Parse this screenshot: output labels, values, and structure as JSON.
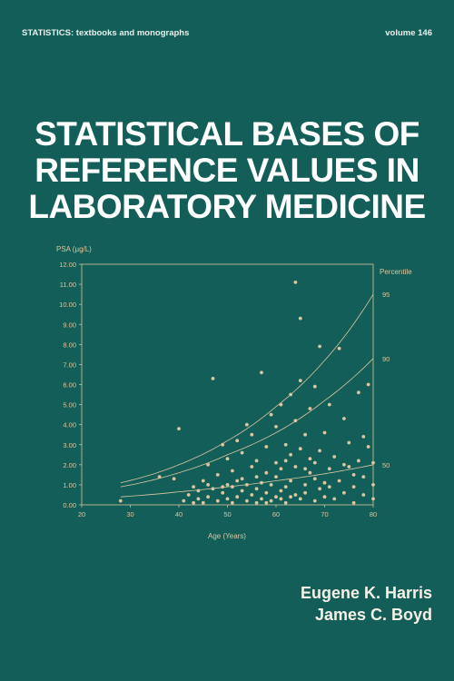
{
  "header": {
    "series": "STATISTICS: textbooks and monographs",
    "volume": "volume 146"
  },
  "title_lines": [
    "STATISTICAL BASES OF",
    "REFERENCE VALUES IN",
    "LABORATORY MEDICINE"
  ],
  "authors": [
    "Eugene K. Harris",
    "James C. Boyd"
  ],
  "colors": {
    "background": "#135e58",
    "plot_ink": "#d9c7a1",
    "title": "#ffffff"
  },
  "chart_data": {
    "type": "scatter",
    "ylabel": "PSA (µg/L)",
    "xlabel": "Age (Years)",
    "right_axis_title": "Percentile",
    "xlim": [
      20,
      80
    ],
    "ylim": [
      0,
      12
    ],
    "xticks": [
      "20",
      "30",
      "40",
      "50",
      "60",
      "70",
      "80"
    ],
    "yticks": [
      "0.00",
      "1.00",
      "2.00",
      "3.00",
      "4.00",
      "5.00",
      "6.00",
      "7.00",
      "8.00",
      "9.00",
      "10.00",
      "11.00",
      "12.00"
    ],
    "percentile_curves": [
      {
        "label": "95",
        "x": [
          28,
          40,
          50,
          60,
          70,
          80
        ],
        "y": [
          1.1,
          2.0,
          3.2,
          4.9,
          7.2,
          10.5
        ]
      },
      {
        "label": "90",
        "x": [
          28,
          40,
          50,
          60,
          70,
          80
        ],
        "y": [
          0.9,
          1.6,
          2.5,
          3.6,
          5.2,
          7.3
        ]
      },
      {
        "label": "50",
        "x": [
          28,
          40,
          50,
          60,
          70,
          80
        ],
        "y": [
          0.4,
          0.65,
          0.9,
          1.2,
          1.55,
          2.0
        ]
      }
    ],
    "points": [
      [
        28,
        0.2
      ],
      [
        36,
        1.4
      ],
      [
        39,
        1.3
      ],
      [
        40,
        3.8
      ],
      [
        41,
        0.2
      ],
      [
        42,
        0.5
      ],
      [
        43,
        0.9
      ],
      [
        44,
        0.3
      ],
      [
        44,
        0.7
      ],
      [
        45,
        1.2
      ],
      [
        45,
        0.1
      ],
      [
        46,
        0.4
      ],
      [
        46,
        2.0
      ],
      [
        47,
        6.3
      ],
      [
        47,
        0.8
      ],
      [
        48,
        0.2
      ],
      [
        48,
        1.5
      ],
      [
        49,
        3.0
      ],
      [
        49,
        0.6
      ],
      [
        50,
        0.3
      ],
      [
        50,
        1.0
      ],
      [
        50,
        2.3
      ],
      [
        51,
        0.1
      ],
      [
        51,
        0.9
      ],
      [
        51,
        1.7
      ],
      [
        52,
        3.2
      ],
      [
        52,
        0.4
      ],
      [
        53,
        0.7
      ],
      [
        53,
        1.3
      ],
      [
        53,
        2.6
      ],
      [
        54,
        4.0
      ],
      [
        54,
        0.2
      ],
      [
        54,
        1.0
      ],
      [
        55,
        0.5
      ],
      [
        55,
        1.9
      ],
      [
        55,
        3.5
      ],
      [
        56,
        0.8
      ],
      [
        56,
        0.1
      ],
      [
        56,
        2.2
      ],
      [
        57,
        6.6
      ],
      [
        57,
        1.1
      ],
      [
        57,
        0.3
      ],
      [
        58,
        0.6
      ],
      [
        58,
        1.6
      ],
      [
        58,
        2.9
      ],
      [
        59,
        4.5
      ],
      [
        59,
        0.2
      ],
      [
        59,
        1.0
      ],
      [
        60,
        0.4
      ],
      [
        60,
        1.4
      ],
      [
        60,
        3.9
      ],
      [
        60,
        2.1
      ],
      [
        61,
        0.7
      ],
      [
        61,
        5.0
      ],
      [
        61,
        1.8
      ],
      [
        62,
        0.1
      ],
      [
        62,
        0.9
      ],
      [
        62,
        3.0
      ],
      [
        63,
        2.5
      ],
      [
        63,
        5.5
      ],
      [
        63,
        1.2
      ],
      [
        64,
        0.5
      ],
      [
        64,
        11.1
      ],
      [
        64,
        4.2
      ],
      [
        64,
        1.9
      ],
      [
        65,
        9.3
      ],
      [
        65,
        0.3
      ],
      [
        65,
        2.8
      ],
      [
        65,
        6.2
      ],
      [
        66,
        1.0
      ],
      [
        66,
        3.5
      ],
      [
        66,
        0.6
      ],
      [
        67,
        1.6
      ],
      [
        67,
        4.8
      ],
      [
        67,
        2.3
      ],
      [
        68,
        0.2
      ],
      [
        68,
        5.9
      ],
      [
        68,
        1.3
      ],
      [
        69,
        7.9
      ],
      [
        69,
        0.8
      ],
      [
        69,
        2.7
      ],
      [
        70,
        0.4
      ],
      [
        70,
        1.1
      ],
      [
        70,
        3.6
      ],
      [
        71,
        5.0
      ],
      [
        71,
        1.8
      ],
      [
        72,
        0.3
      ],
      [
        72,
        2.4
      ],
      [
        73,
        1.2
      ],
      [
        73,
        7.8
      ],
      [
        74,
        4.3
      ],
      [
        74,
        0.6
      ],
      [
        75,
        1.9
      ],
      [
        75,
        3.1
      ],
      [
        76,
        0.9
      ],
      [
        76,
        0.1
      ],
      [
        77,
        2.2
      ],
      [
        77,
        5.6
      ],
      [
        78,
        1.4
      ],
      [
        78,
        0.5
      ],
      [
        79,
        6.0
      ],
      [
        79,
        2.9
      ],
      [
        80,
        1.0
      ],
      [
        80,
        0.3
      ],
      [
        80,
        2.1
      ],
      [
        43,
        0.1
      ],
      [
        49,
        0.9
      ],
      [
        52,
        1.2
      ],
      [
        56,
        1.4
      ],
      [
        58,
        0.1
      ],
      [
        61,
        0.3
      ],
      [
        63,
        0.4
      ],
      [
        66,
        1.8
      ],
      [
        68,
        2.1
      ],
      [
        71,
        0.9
      ],
      [
        74,
        2.0
      ],
      [
        76,
        1.5
      ],
      [
        78,
        3.4
      ],
      [
        46,
        1.0
      ],
      [
        62,
        2.2
      ]
    ]
  }
}
